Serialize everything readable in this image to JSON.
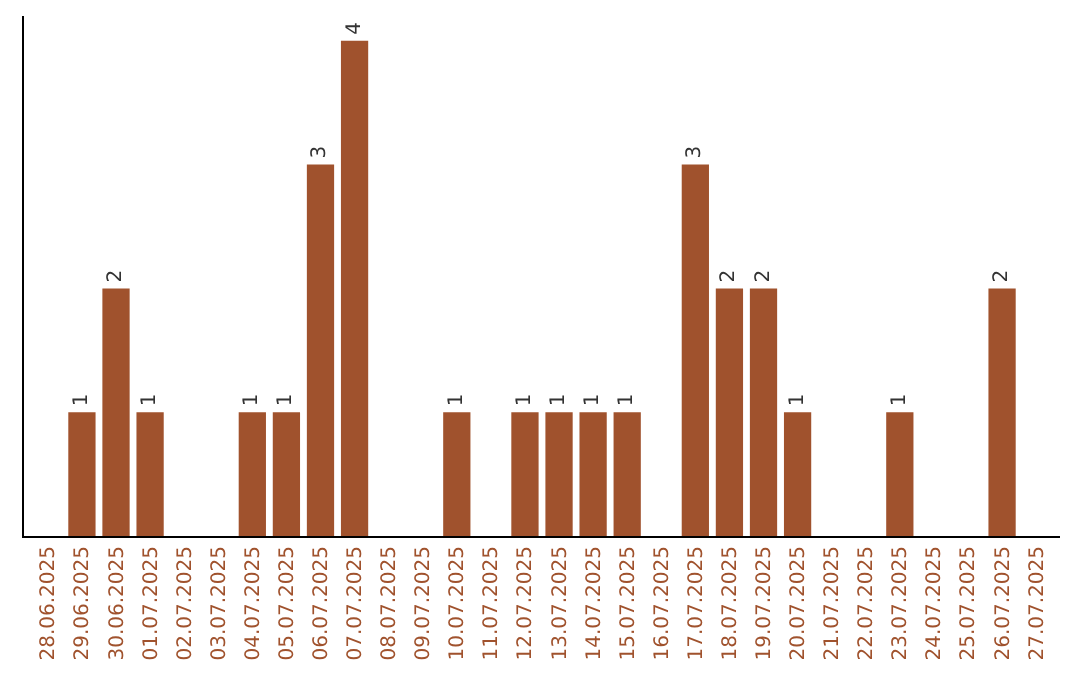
{
  "chart_data": {
    "type": "bar",
    "categories": [
      "28.06.2025",
      "29.06.2025",
      "30.06.2025",
      "01.07.2025",
      "02.07.2025",
      "03.07.2025",
      "04.07.2025",
      "05.07.2025",
      "06.07.2025",
      "07.07.2025",
      "08.07.2025",
      "09.07.2025",
      "10.07.2025",
      "11.07.2025",
      "12.07.2025",
      "13.07.2025",
      "14.07.2025",
      "15.07.2025",
      "16.07.2025",
      "17.07.2025",
      "18.07.2025",
      "19.07.2025",
      "20.07.2025",
      "21.07.2025",
      "22.07.2025",
      "23.07.2025",
      "24.07.2025",
      "25.07.2025",
      "26.07.2025",
      "27.07.2025"
    ],
    "values": [
      0,
      1,
      2,
      1,
      0,
      0,
      1,
      1,
      3,
      4,
      0,
      0,
      1,
      0,
      1,
      1,
      1,
      1,
      0,
      3,
      2,
      2,
      1,
      0,
      0,
      1,
      0,
      0,
      2,
      0
    ],
    "value_labels": [
      null,
      "1",
      "2",
      "1",
      null,
      null,
      "1",
      "1",
      "3",
      "4",
      null,
      null,
      "1",
      null,
      "1",
      "1",
      "1",
      "1",
      null,
      "3",
      "2",
      "2",
      "1",
      null,
      null,
      "1",
      null,
      null,
      "2",
      null
    ],
    "color": "#a0522d",
    "ylim": [
      0,
      4.2
    ],
    "tick_labels": "x"
  }
}
